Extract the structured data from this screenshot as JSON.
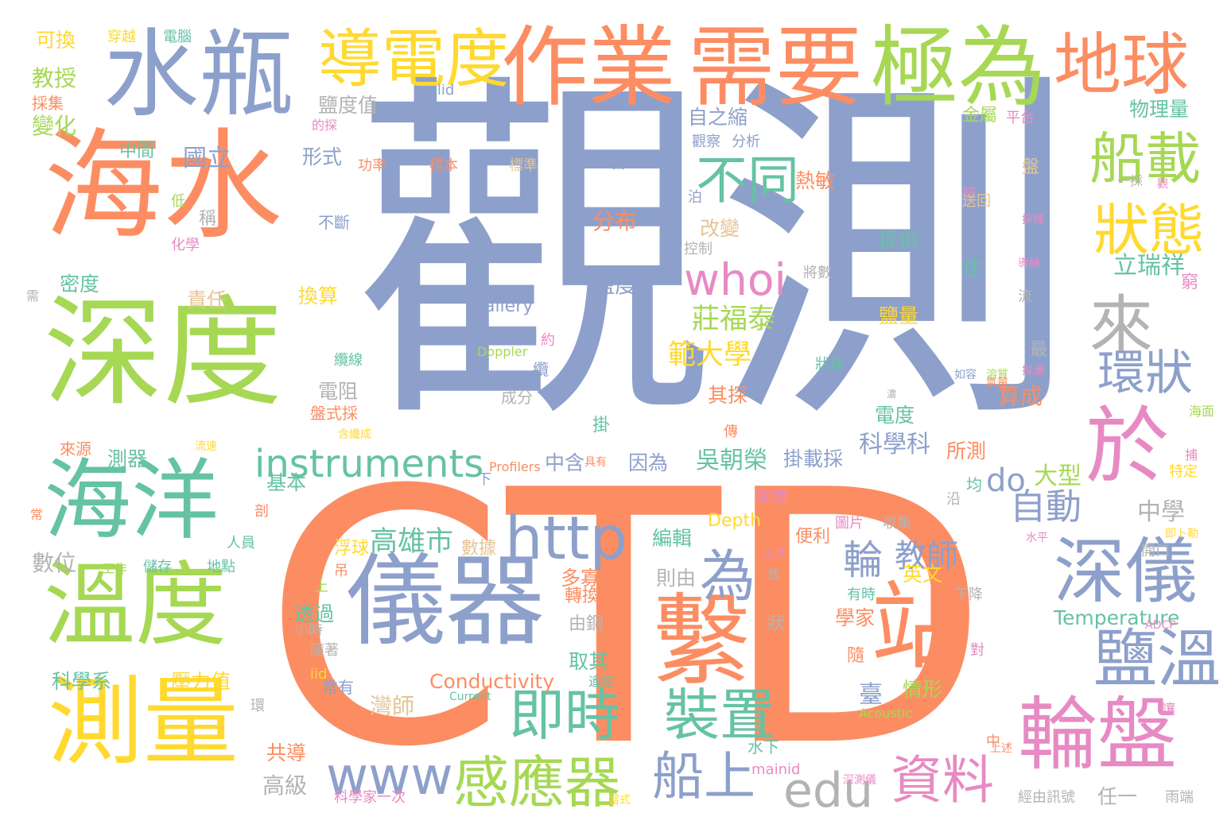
{
  "colors": {
    "orange": "#fc8d62",
    "blue": "#8da0cb",
    "green": "#a6d854",
    "teal": "#66c2a5",
    "yellow": "#ffd92f",
    "pink": "#e78ac3",
    "tan": "#e5c494",
    "gray": "#b3b3b3"
  },
  "words": [
    {
      "text": "觀測",
      "color": "blue"
    },
    {
      "text": "CTD",
      "color": "orange"
    },
    {
      "text": "海水",
      "color": "orange"
    },
    {
      "text": "深度",
      "color": "green"
    },
    {
      "text": "水瓶",
      "color": "blue"
    },
    {
      "text": "作業",
      "color": "orange"
    },
    {
      "text": "需要",
      "color": "orange"
    },
    {
      "text": "極為",
      "color": "green"
    },
    {
      "text": "地球",
      "color": "orange"
    },
    {
      "text": "導電度",
      "color": "yellow"
    },
    {
      "text": "海洋",
      "color": "teal"
    },
    {
      "text": "溫度",
      "color": "green"
    },
    {
      "text": "測量",
      "color": "yellow"
    },
    {
      "text": "儀器",
      "color": "blue"
    },
    {
      "text": "繫",
      "color": "orange"
    },
    {
      "text": "站",
      "color": "orange"
    },
    {
      "text": "於",
      "color": "pink"
    },
    {
      "text": "來",
      "color": "gray"
    },
    {
      "text": "深儀",
      "color": "blue"
    },
    {
      "text": "鹽溫",
      "color": "blue"
    },
    {
      "text": "輪盤",
      "color": "pink"
    },
    {
      "text": "船載",
      "color": "green"
    },
    {
      "text": "狀態",
      "color": "yellow"
    },
    {
      "text": "環狀",
      "color": "blue"
    },
    {
      "text": "不同",
      "color": "teal"
    },
    {
      "text": "whoi",
      "color": "pink"
    },
    {
      "text": "http",
      "color": "blue"
    },
    {
      "text": "為",
      "color": "blue"
    },
    {
      "text": "instruments",
      "color": "teal"
    },
    {
      "text": "即時",
      "color": "teal"
    },
    {
      "text": "裝置",
      "color": "teal"
    },
    {
      "text": "www",
      "color": "blue"
    },
    {
      "text": "感應器",
      "color": "green"
    },
    {
      "text": "船上",
      "color": "blue"
    },
    {
      "text": "edu",
      "color": "gray"
    },
    {
      "text": "資料",
      "color": "pink"
    },
    {
      "text": "自動",
      "color": "blue"
    },
    {
      "text": "輪",
      "color": "blue"
    },
    {
      "text": "教師",
      "color": "blue"
    },
    {
      "text": "莊福泰",
      "color": "green"
    },
    {
      "text": "範大學",
      "color": "yellow"
    },
    {
      "text": "吳朝榮",
      "color": "teal"
    },
    {
      "text": "科學科",
      "color": "blue"
    },
    {
      "text": "立瑞祥",
      "color": "teal"
    },
    {
      "text": "do",
      "color": "blue"
    },
    {
      "text": "大型",
      "color": "green"
    },
    {
      "text": "高雄市",
      "color": "teal"
    },
    {
      "text": "中學",
      "color": "gray"
    },
    {
      "text": "可換",
      "color": "yellow"
    },
    {
      "text": "穿越",
      "color": "yellow"
    },
    {
      "text": "電腦",
      "color": "teal"
    },
    {
      "text": "教授",
      "color": "green"
    },
    {
      "text": "採集",
      "color": "orange"
    },
    {
      "text": "變化",
      "color": "green"
    },
    {
      "text": "中間",
      "color": "teal"
    },
    {
      "text": "國立",
      "color": "blue"
    },
    {
      "text": "形式",
      "color": "blue"
    },
    {
      "text": "功率",
      "color": "orange"
    },
    {
      "text": "標本",
      "color": "orange"
    },
    {
      "text": "標準",
      "color": "tan"
    },
    {
      "text": "會",
      "color": "blue"
    },
    {
      "text": "分布",
      "color": "orange"
    },
    {
      "text": "鹽度",
      "color": "blue"
    },
    {
      "text": "鹽度值",
      "color": "gray"
    },
    {
      "text": "clid",
      "color": "blue"
    },
    {
      "text": "自之縮",
      "color": "blue"
    },
    {
      "text": "觀察",
      "color": "blue"
    },
    {
      "text": "分析",
      "color": "blue"
    },
    {
      "text": "熱敏",
      "color": "orange"
    },
    {
      "text": "訊號",
      "color": "blue"
    },
    {
      "text": "改變",
      "color": "tan"
    },
    {
      "text": "控制",
      "color": "gray"
    },
    {
      "text": "提供",
      "color": "teal"
    },
    {
      "text": "將數",
      "color": "gray"
    },
    {
      "text": "鹽量",
      "color": "yellow"
    },
    {
      "text": "物理量",
      "color": "teal"
    },
    {
      "text": "金屬",
      "color": "green"
    },
    {
      "text": "平台",
      "color": "pink"
    },
    {
      "text": "低",
      "color": "green"
    },
    {
      "text": "化學",
      "color": "pink"
    },
    {
      "text": "不斷",
      "color": "blue"
    },
    {
      "text": "稱",
      "color": "gray"
    },
    {
      "text": "密度",
      "color": "teal"
    },
    {
      "text": "責任",
      "color": "tan"
    },
    {
      "text": "換算",
      "color": "yellow"
    },
    {
      "text": "gallery",
      "color": "blue"
    },
    {
      "text": "Doppler",
      "color": "green"
    },
    {
      "text": "約",
      "color": "pink"
    },
    {
      "text": "纜",
      "color": "blue"
    },
    {
      "text": "成分",
      "color": "gray"
    },
    {
      "text": "電阻",
      "color": "gray"
    },
    {
      "text": "其探",
      "color": "orange"
    },
    {
      "text": "電度",
      "color": "teal"
    },
    {
      "text": "算成",
      "color": "orange"
    },
    {
      "text": "因為",
      "color": "blue"
    },
    {
      "text": "中含",
      "color": "blue"
    },
    {
      "text": "掛",
      "color": "teal"
    },
    {
      "text": "掛載採",
      "color": "blue"
    },
    {
      "text": "所測",
      "color": "orange"
    },
    {
      "text": "測器",
      "color": "teal"
    },
    {
      "text": "來源",
      "color": "orange"
    },
    {
      "text": "基本",
      "color": "teal"
    },
    {
      "text": "Profilers",
      "color": "orange"
    },
    {
      "text": "關閉",
      "color": "pink"
    },
    {
      "text": "Depth",
      "color": "yellow"
    },
    {
      "text": "編輯",
      "color": "teal"
    },
    {
      "text": "便利",
      "color": "orange"
    },
    {
      "text": "圖片",
      "color": "pink"
    },
    {
      "text": "收集",
      "color": "gray"
    },
    {
      "text": "數據",
      "color": "tan"
    },
    {
      "text": "浮球",
      "color": "yellow"
    },
    {
      "text": "數位",
      "color": "gray"
    },
    {
      "text": "儲存",
      "color": "teal"
    },
    {
      "text": "地點",
      "color": "teal"
    },
    {
      "text": "人員",
      "color": "teal"
    },
    {
      "text": "工作",
      "color": "green"
    },
    {
      "text": "多寡",
      "color": "orange"
    },
    {
      "text": "英文",
      "color": "yellow"
    },
    {
      "text": "轉換",
      "color": "orange"
    },
    {
      "text": "則由",
      "color": "gray"
    },
    {
      "text": "Temperature",
      "color": "teal"
    },
    {
      "text": "學家",
      "color": "orange"
    },
    {
      "text": "有時",
      "color": "teal"
    },
    {
      "text": "下降",
      "color": "gray"
    },
    {
      "text": "透過",
      "color": "teal"
    },
    {
      "text": "由鋼",
      "color": "gray"
    },
    {
      "text": "狀",
      "color": "gray"
    },
    {
      "text": "取其",
      "color": "teal"
    },
    {
      "text": "Conductivity",
      "color": "orange"
    },
    {
      "text": "臺",
      "color": "blue"
    },
    {
      "text": "情形",
      "color": "green"
    },
    {
      "text": "科學系",
      "color": "teal"
    },
    {
      "text": "壓力值",
      "color": "yellow"
    },
    {
      "text": "灣師",
      "color": "tan"
    },
    {
      "text": "共導",
      "color": "orange"
    },
    {
      "text": "水下",
      "color": "teal"
    },
    {
      "text": "高級",
      "color": "gray"
    },
    {
      "text": "mainid",
      "color": "pink"
    },
    {
      "text": "科學家一次",
      "color": "pink"
    },
    {
      "text": "任一",
      "color": "gray"
    },
    {
      "text": "雨端",
      "color": "gray"
    },
    {
      "text": "經由訊號",
      "color": "gray"
    },
    {
      "text": "常有",
      "color": "blue"
    },
    {
      "text": "Current",
      "color": "teal"
    },
    {
      "text": "Acoustic",
      "color": "green"
    },
    {
      "text": "iid",
      "color": "yellow"
    },
    {
      "text": "ADCP",
      "color": "pink"
    },
    {
      "text": "住",
      "color": "teal"
    },
    {
      "text": "最",
      "color": "gray"
    },
    {
      "text": "流",
      "color": "gray"
    },
    {
      "text": "窮",
      "color": "pink"
    },
    {
      "text": "特定",
      "color": "yellow"
    },
    {
      "text": "海面",
      "color": "green"
    },
    {
      "text": "開口",
      "color": "gray"
    },
    {
      "text": "水平",
      "color": "pink"
    },
    {
      "text": "隨著",
      "color": "gray"
    },
    {
      "text": "小時",
      "color": "gray"
    },
    {
      "text": "吊",
      "color": "orange"
    },
    {
      "text": "剖",
      "color": "orange"
    },
    {
      "text": "下",
      "color": "blue"
    },
    {
      "text": "均",
      "color": "teal"
    },
    {
      "text": "隨",
      "color": "orange"
    },
    {
      "text": "對",
      "color": "pink"
    },
    {
      "text": "上",
      "color": "green"
    },
    {
      "text": "環",
      "color": "gray"
    },
    {
      "text": "需",
      "color": "gray"
    },
    {
      "text": "常",
      "color": "orange"
    },
    {
      "text": "泊",
      "color": "blue"
    },
    {
      "text": "傳",
      "color": "orange"
    },
    {
      "text": "沿",
      "color": "gray"
    },
    {
      "text": "讓",
      "color": "pink"
    },
    {
      "text": "中",
      "color": "orange"
    },
    {
      "text": "盤",
      "color": "tan"
    },
    {
      "text": "該",
      "color": "pink"
    },
    {
      "text": "一採",
      "color": "gray"
    },
    {
      "text": "送回",
      "color": "tan"
    },
    {
      "text": "觀",
      "color": "pink"
    },
    {
      "text": "纜線",
      "color": "teal"
    },
    {
      "text": "盤式採",
      "color": "orange"
    },
    {
      "text": "狀採",
      "color": "teal"
    },
    {
      "text": "放",
      "color": "gray"
    },
    {
      "text": "的探",
      "color": "pink"
    },
    {
      "text": "遙控",
      "color": "teal"
    },
    {
      "text": "上述",
      "color": "orange"
    },
    {
      "text": "如容",
      "color": "blue"
    },
    {
      "text": "具有",
      "color": "orange"
    },
    {
      "text": "捕",
      "color": "pink"
    },
    {
      "text": "即卜勒",
      "color": "yellow"
    },
    {
      "text": "工具",
      "color": "pink"
    },
    {
      "text": "含纖成",
      "color": "yellow"
    },
    {
      "text": "流速",
      "color": "yellow"
    },
    {
      "text": "溶質",
      "color": "green"
    },
    {
      "text": "深測儀",
      "color": "pink"
    },
    {
      "text": "當式",
      "color": "yellow"
    },
    {
      "text": "採樣",
      "color": "pink"
    },
    {
      "text": "導納",
      "color": "pink"
    },
    {
      "text": "探濃",
      "color": "pink"
    },
    {
      "text": "氣量",
      "color": "orange"
    },
    {
      "text": "濃",
      "color": "gray"
    }
  ]
}
